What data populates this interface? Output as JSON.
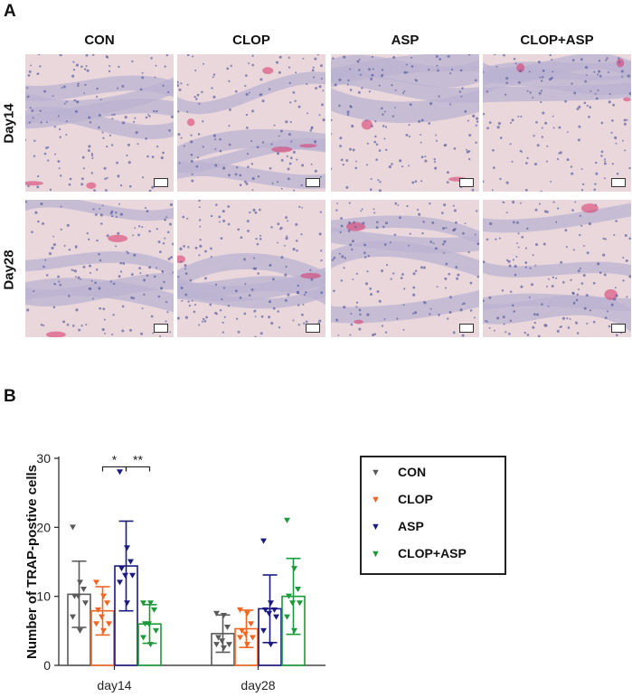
{
  "panel_a": {
    "label": "A",
    "columns": [
      "CON",
      "CLOP",
      "ASP",
      "CLOP+ASP"
    ],
    "rows": [
      "Day14",
      "Day28"
    ]
  },
  "panel_b": {
    "label": "B"
  },
  "colors": {
    "CON": "#5a5a5a",
    "CLOP": "#f26522",
    "ASP": "#1a1a80",
    "CLOP+ASP": "#1a9a3a",
    "tissue": "#e9d7dc",
    "stain": "#d8336a",
    "nuclei": "#5b5f9c"
  },
  "legend": {
    "marker": "▼",
    "items": [
      {
        "name": "CON",
        "color": "#5a5a5a"
      },
      {
        "name": "CLOP",
        "color": "#f26522"
      },
      {
        "name": "ASP",
        "color": "#1a1a80"
      },
      {
        "name": "CLOP+ASP",
        "color": "#1a9a3a"
      }
    ]
  },
  "chart_data": {
    "type": "bar",
    "categories": [
      "day14",
      "day28"
    ],
    "ylabel": "Number of TRAP-postive cells",
    "xlabel": "",
    "ylim": [
      0,
      30
    ],
    "yticks": [
      "0",
      "10",
      "20",
      "30"
    ],
    "error_bars": "mean ± SD",
    "series": [
      {
        "name": "CON",
        "means": [
          10.3,
          4.6
        ],
        "sd": [
          4.8,
          2.7
        ],
        "points": [
          [
            20,
            12,
            11,
            10,
            10,
            9,
            7,
            5
          ],
          [
            7.5,
            7.2,
            5.5,
            4,
            3.5,
            3,
            3,
            2.5
          ]
        ]
      },
      {
        "name": "CLOP",
        "means": [
          7.9,
          5.3
        ],
        "sd": [
          3.5,
          2.7
        ],
        "points": [
          [
            12,
            10,
            9,
            8,
            7,
            6,
            6,
            5
          ],
          [
            8,
            7.5,
            6,
            5,
            4.5,
            4,
            4,
            3
          ]
        ]
      },
      {
        "name": "ASP",
        "means": [
          14.4,
          8.2
        ],
        "sd": [
          6.5,
          4.9
        ],
        "points": [
          [
            28,
            17,
            15,
            14,
            13,
            13,
            12,
            9
          ],
          [
            18,
            9,
            8,
            8,
            7.5,
            7,
            5,
            3
          ]
        ]
      },
      {
        "name": "CLOP+ASP",
        "means": [
          6.0,
          10.0
        ],
        "sd": [
          2.8,
          5.5
        ],
        "points": [
          [
            9,
            9,
            8,
            6,
            6,
            5,
            4,
            3
          ],
          [
            21,
            14,
            11,
            10,
            9,
            9,
            7,
            5
          ]
        ]
      }
    ],
    "significance": [
      {
        "group": "day14",
        "from": "CLOP",
        "to": "ASP",
        "label": "*"
      },
      {
        "group": "day14",
        "from": "ASP",
        "to": "CLOP+ASP",
        "label": "**"
      }
    ],
    "legend_position": "right"
  }
}
